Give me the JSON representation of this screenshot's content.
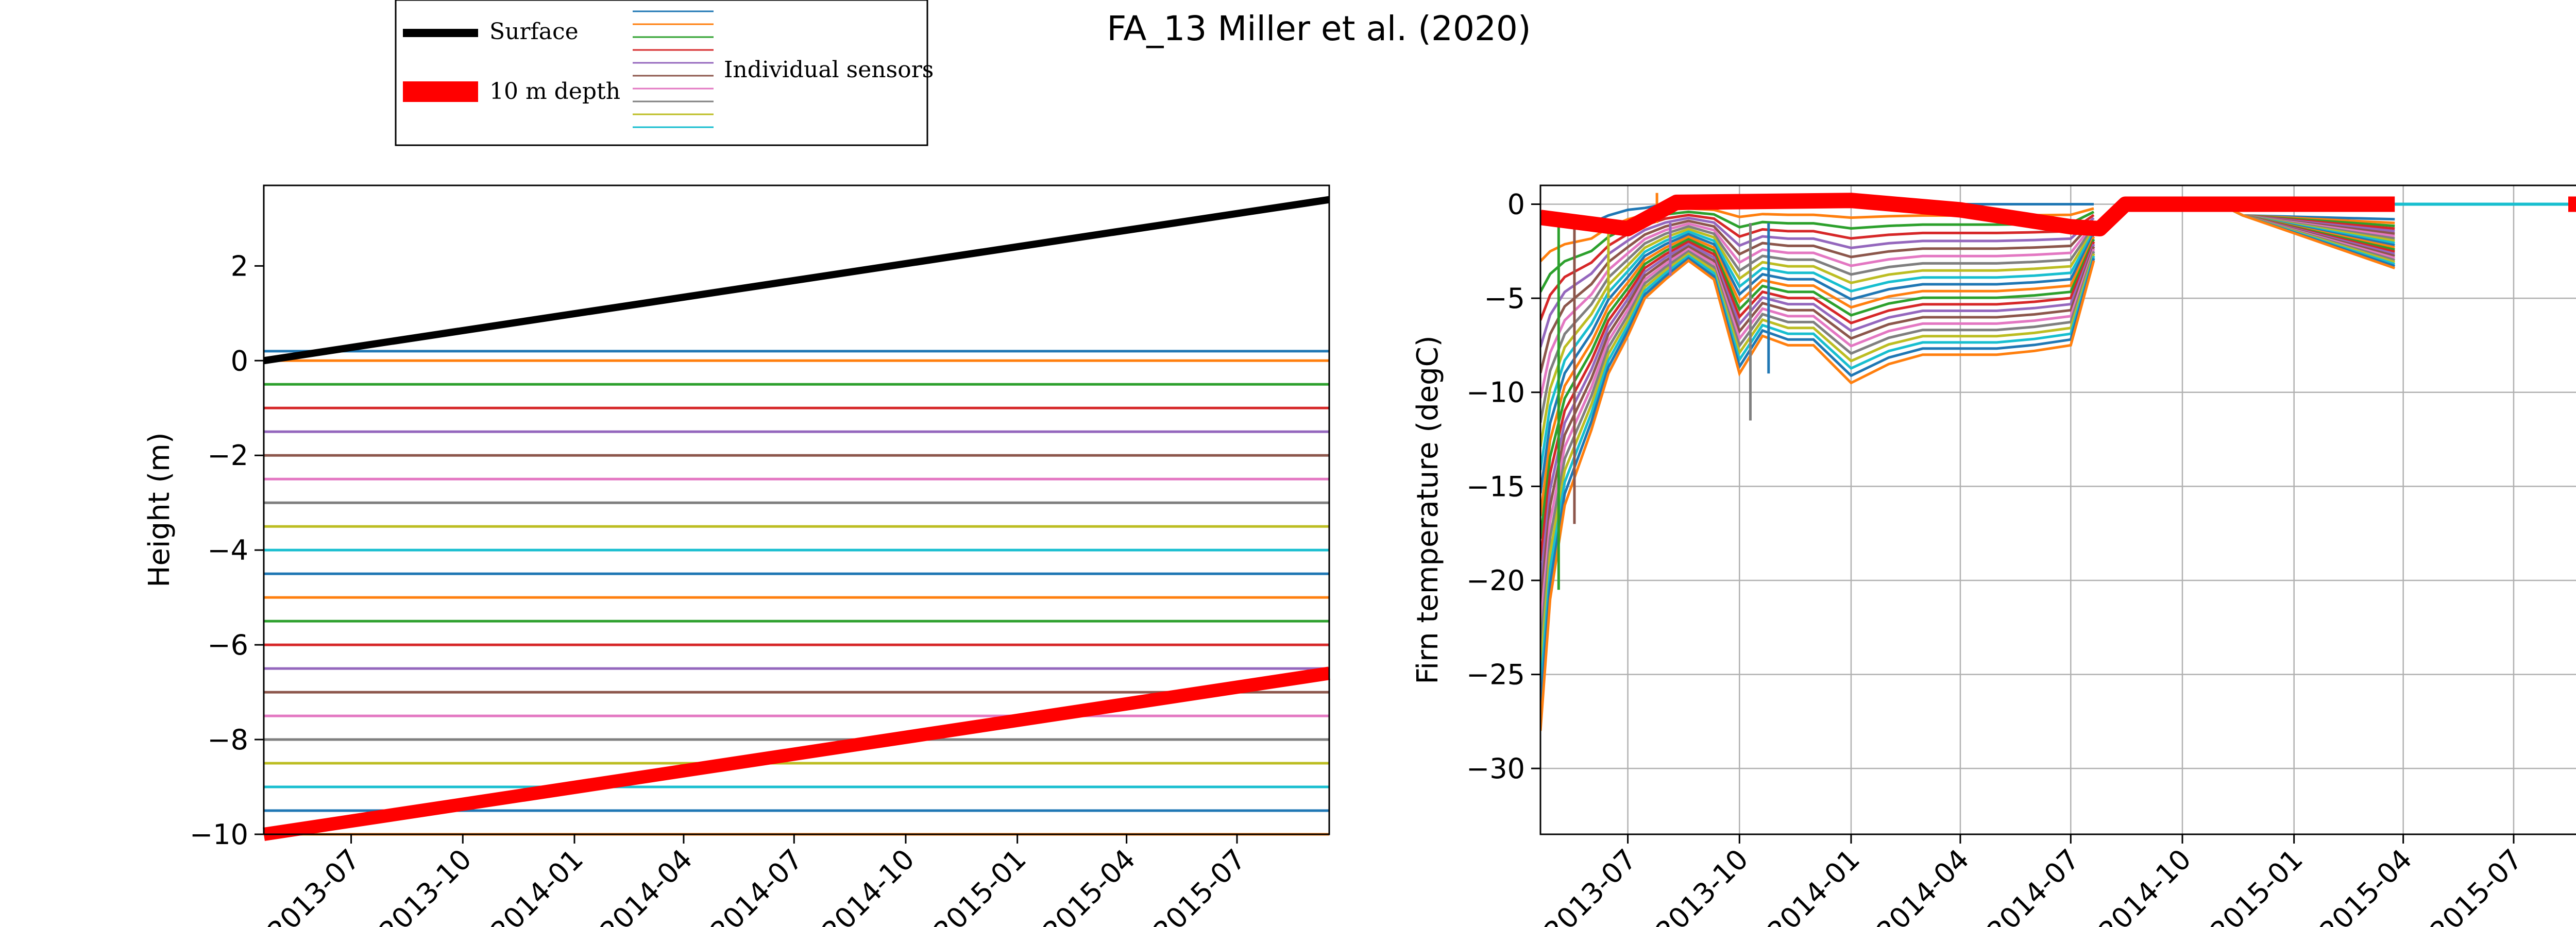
{
  "figure": {
    "title": "FA_13 Miller et al. (2020)"
  },
  "legend": {
    "entries": [
      {
        "label": "Surface",
        "color": "#000000",
        "style": "thick"
      },
      {
        "label": "10 m depth",
        "color": "#ff0000",
        "style": "very-thick"
      }
    ],
    "sensors_label": "Individual sensors",
    "sensor_colors": [
      "#1f77b4",
      "#ff7f0e",
      "#2ca02c",
      "#d62728",
      "#9467bd",
      "#8c564b",
      "#e377c2",
      "#7f7f7f",
      "#bcbd22",
      "#17becf"
    ],
    "placement": "top-left, above plots"
  },
  "chart_data": [
    {
      "type": "line",
      "xlabel": "",
      "ylabel": "Height (m)",
      "xlim": [
        "2013-04-20",
        "2015-09-15"
      ],
      "ylim": [
        -10,
        3.7
      ],
      "yticks": [
        2,
        0,
        -2,
        -4,
        -6,
        -8,
        -10
      ],
      "ytick_labels": [
        "2",
        "0",
        "−2",
        "−4",
        "−6",
        "−8",
        "−10"
      ],
      "xticks": [
        "2013-07-01",
        "2013-10-01",
        "2014-01-01",
        "2014-04-01",
        "2014-07-01",
        "2014-10-01",
        "2015-01-01",
        "2015-04-01",
        "2015-07-01"
      ],
      "xtick_labels": [
        "2013-07",
        "2013-10",
        "2014-01",
        "2014-04",
        "2014-07",
        "2014-10",
        "2015-01",
        "2015-04",
        "2015-07"
      ],
      "grid": false,
      "surface": {
        "x": [
          "2013-04-20",
          "2015-09-15"
        ],
        "y": [
          0.0,
          3.4
        ]
      },
      "depth_10m": {
        "x": [
          "2013-04-20",
          "2015-09-15"
        ],
        "y": [
          -10.0,
          -6.6
        ]
      },
      "sensor_depths": [
        0.2,
        0.0,
        -0.5,
        -1.0,
        -1.5,
        -2.0,
        -2.5,
        -3.0,
        -3.5,
        -4.0,
        -4.5,
        -5.0,
        -5.5,
        -6.0,
        -6.5,
        -7.0,
        -7.5,
        -8.0,
        -8.5,
        -9.0,
        -9.5,
        -10.0
      ]
    },
    {
      "type": "line",
      "xlabel": "",
      "ylabel": "Firn temperature (degC)",
      "xlim": [
        "2013-04-20",
        "2015-09-15"
      ],
      "ylim": [
        -33.5,
        1
      ],
      "yticks": [
        0,
        -5,
        -10,
        -15,
        -20,
        -25,
        -30
      ],
      "ytick_labels": [
        "0",
        "−5",
        "−10",
        "−15",
        "−20",
        "−25",
        "−30"
      ],
      "xticks": [
        "2013-07-01",
        "2013-10-01",
        "2014-01-01",
        "2014-04-01",
        "2014-07-01",
        "2014-10-01",
        "2015-01-01",
        "2015-04-01",
        "2015-07-01"
      ],
      "xtick_labels": [
        "2013-07",
        "2013-10",
        "2014-01",
        "2014-04",
        "2014-07",
        "2014-10",
        "2015-01",
        "2015-04",
        "2015-07"
      ],
      "grid": true,
      "sensor_count": 22,
      "profile_keys": {
        "x": [
          "2013-04-20",
          "2013-04-28",
          "2013-05-10",
          "2013-06-01",
          "2013-06-15",
          "2013-07-01",
          "2013-07-15",
          "2013-08-01",
          "2013-08-20",
          "2013-09-10",
          "2013-10-01",
          "2013-10-20",
          "2013-11-10",
          "2013-12-01",
          "2014-01-01",
          "2014-02-01",
          "2014-03-01",
          "2014-04-01",
          "2014-05-01",
          "2014-06-01",
          "2014-07-01",
          "2014-07-20"
        ],
        "shallow": [
          -1,
          -1,
          -1,
          -1,
          -0.6,
          -0.3,
          -0.2,
          0,
          0,
          0,
          0,
          0,
          0,
          0,
          0,
          0,
          0,
          0,
          0,
          0,
          0,
          0
        ],
        "deep": [
          -28,
          -21,
          -16,
          -12,
          -9,
          -7,
          -5,
          -4,
          -3,
          -4,
          -9,
          -7,
          -7.5,
          -7.5,
          -9.5,
          -8.5,
          -8,
          -8,
          -8,
          -7.8,
          -7.5,
          -3
        ]
      },
      "late_segment": {
        "x": [
          "2014-11-01",
          "2014-11-20",
          "2015-03-25"
        ],
        "shallow": [
          0,
          -0.6,
          -0.8
        ],
        "deep": [
          0,
          -0.6,
          -3.4
        ]
      },
      "depth_10m": {
        "x": [
          "2013-04-20",
          "2013-07-01",
          "2013-08-10",
          "2014-01-01",
          "2014-04-01",
          "2014-07-01",
          "2014-07-25",
          "2014-08-15",
          "2015-03-25"
        ],
        "y": [
          -0.7,
          -1.3,
          0.1,
          0.2,
          -0.3,
          -1.2,
          -1.3,
          0.0,
          0.0
        ]
      },
      "depth_10m_late": {
        "x": [
          "2015-08-15",
          "2015-09-15"
        ],
        "y": [
          0.0,
          0.0
        ]
      },
      "spike_noise": [
        {
          "x": "2013-05-05",
          "y": -20.5
        },
        {
          "x": "2013-05-18",
          "y": -17
        },
        {
          "x": "2013-06-15",
          "y": -5
        },
        {
          "x": "2013-07-25",
          "y": 0.6
        },
        {
          "x": "2013-08-05",
          "y": -3.8
        },
        {
          "x": "2013-10-10",
          "y": -11.5
        },
        {
          "x": "2013-10-25",
          "y": -9
        }
      ]
    }
  ]
}
